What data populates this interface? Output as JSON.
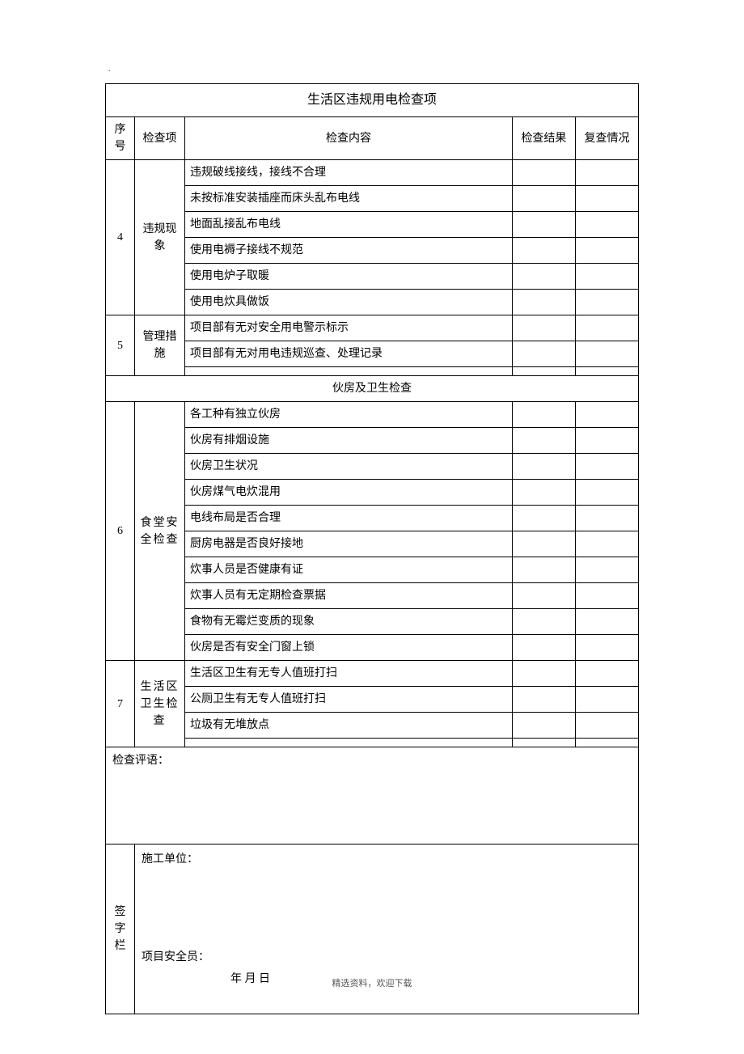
{
  "top_mark": ".",
  "section1_title": "生活区违规用电检查项",
  "headers": {
    "seq": "序号",
    "item": "检查项",
    "content": "检查内容",
    "result": "检查结果",
    "review": "复查情况"
  },
  "row4": {
    "seq": "4",
    "item": "违规现象",
    "contents": [
      "违规破线接线，接线不合理",
      "未按标准安装插座而床头乱布电线",
      "地面乱接乱布电线",
      "使用电褥子接线不规范",
      "使用电炉子取暖",
      "使用电炊具做饭"
    ]
  },
  "row5": {
    "seq": "5",
    "item": "管理措施",
    "contents": [
      "项目部有无对安全用电警示标示",
      "项目部有无对用电违规巡查、处理记录",
      ""
    ]
  },
  "section2_title": "伙房及卫生检查",
  "row6": {
    "seq": "6",
    "item": "食堂安全检查",
    "contents": [
      "各工种有独立伙房",
      "伙房有排烟设施",
      "伙房卫生状况",
      "伙房煤气电炊混用",
      "电线布局是否合理",
      "厨房电器是否良好接地",
      "炊事人员是否健康有证",
      "炊事人员有无定期检查票据",
      "食物有无霉烂变质的现象",
      "伙房是否有安全门窗上锁"
    ]
  },
  "row7": {
    "seq": "7",
    "item": "生活区卫生检查",
    "contents": [
      "生活区卫生有无专人值班打扫",
      "公厕卫生有无专人值班打扫",
      "垃圾有无堆放点",
      ""
    ]
  },
  "comment_label": "检查评语：",
  "sign_label": "签字栏",
  "sign_unit": "施工单位：",
  "sign_officer": "项目安全员：",
  "sign_date": "年  月  日",
  "footer": "精选资料，欢迎下载"
}
